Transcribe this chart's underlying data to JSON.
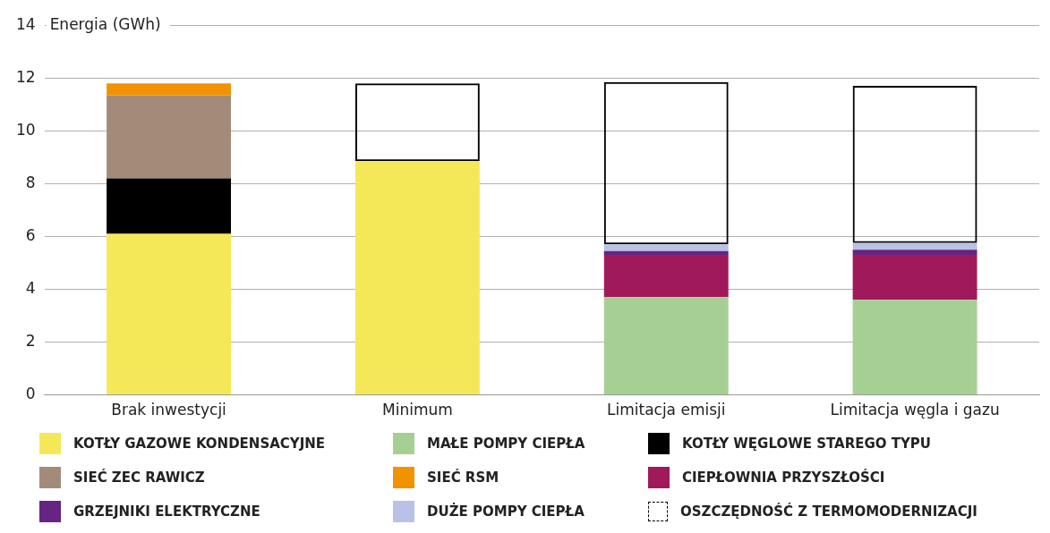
{
  "chart_data": {
    "type": "bar",
    "stacked": true,
    "ylabel": "Energia (GWh)",
    "categories": [
      "Brak inwestycji",
      "Minimum",
      "Limitacja emisji",
      "Limitacja węgla i gazu"
    ],
    "ylim": [
      0,
      14
    ],
    "yticks": [
      0,
      2,
      4,
      6,
      8,
      10,
      12,
      14
    ],
    "grid": "y",
    "legend": "bottom",
    "series": [
      {
        "name": "KOTŁY GAZOWE KONDENSACYJNE",
        "color": "#f5e858",
        "values": [
          6.1,
          8.85,
          null,
          null
        ]
      },
      {
        "name": "MAŁE POMPY CIEPŁA",
        "color": "#a6cf94",
        "values": [
          null,
          null,
          3.7,
          3.6
        ]
      },
      {
        "name": "KOTŁY WĘGLOWE STAREGO TYPU",
        "color": "#000000",
        "values": [
          2.1,
          null,
          null,
          null
        ]
      },
      {
        "name": "SIEĆ ZEC RAWICZ",
        "color": "#a38b7a",
        "values": [
          3.15,
          null,
          null,
          null
        ]
      },
      {
        "name": "SIEĆ RSM",
        "color": "#f39200",
        "values": [
          0.45,
          null,
          null,
          null
        ]
      },
      {
        "name": "CIEPŁOWNIA PRZYSZŁOŚCI",
        "color": "#a0195a",
        "values": [
          null,
          null,
          1.6,
          1.7
        ]
      },
      {
        "name": "GRZEJNIKI ELEKTRYCZNE",
        "color": "#662483",
        "values": [
          null,
          null,
          0.15,
          0.2
        ]
      },
      {
        "name": "DUŻE POMPY CIEPŁA",
        "color": "#b8c2e6",
        "values": [
          null,
          null,
          0.25,
          0.25
        ]
      },
      {
        "name": "OSZCZĘDNOŚĆ Z TERMOMODERNIZACJI",
        "color": "#000000",
        "line_style": "dashed",
        "values": [
          null,
          2.95,
          6.15,
          5.95
        ]
      }
    ]
  }
}
